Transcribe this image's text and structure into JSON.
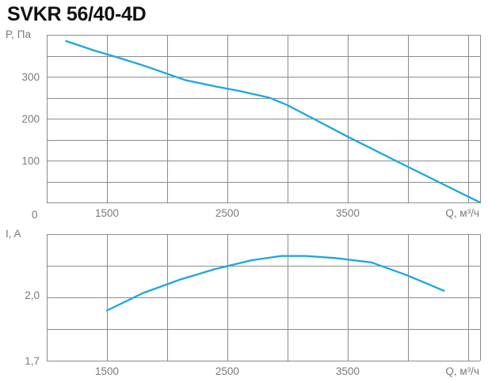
{
  "title": "SVKR 56/40-4D",
  "colors": {
    "grid": "#8c8c8c",
    "curve": "#1aa7df",
    "text": "#7a7a7a"
  },
  "chart_data": [
    {
      "type": "line",
      "ylabel": "P, Па",
      "xlabel": "Q, м³/ч",
      "xlim": [
        1000,
        4600
      ],
      "ylim": [
        0,
        400
      ],
      "x_ticks": [
        1500,
        2500,
        3500
      ],
      "y_ticks": [
        100,
        200,
        300
      ],
      "origin_label": "0",
      "grid": true,
      "series": [
        {
          "x": [
            1160,
            1400,
            1600,
            1800,
            1950,
            2050,
            2150,
            2400,
            2600,
            2850,
            3000,
            3200,
            3500,
            4000,
            4600
          ],
          "values": [
            385,
            362,
            345,
            327,
            312,
            302,
            292,
            277,
            266,
            250,
            232,
            202,
            157,
            85,
            0
          ]
        }
      ]
    },
    {
      "type": "line",
      "ylabel": "I, A",
      "xlabel": "Q, м³/ч",
      "xlim": [
        1000,
        4600
      ],
      "ylim": [
        1.7,
        2.28
      ],
      "x_ticks": [
        1500,
        2500,
        3500
      ],
      "y_ticks": [
        1.7,
        2.0
      ],
      "y_tick_labels": [
        "1,7",
        "2,0"
      ],
      "grid": true,
      "series": [
        {
          "x": [
            1500,
            1800,
            2100,
            2400,
            2700,
            2950,
            3150,
            3400,
            3700,
            4000,
            4300
          ],
          "values": [
            1.93,
            2.01,
            2.07,
            2.12,
            2.16,
            2.18,
            2.18,
            2.17,
            2.15,
            2.09,
            2.02
          ]
        }
      ]
    }
  ]
}
